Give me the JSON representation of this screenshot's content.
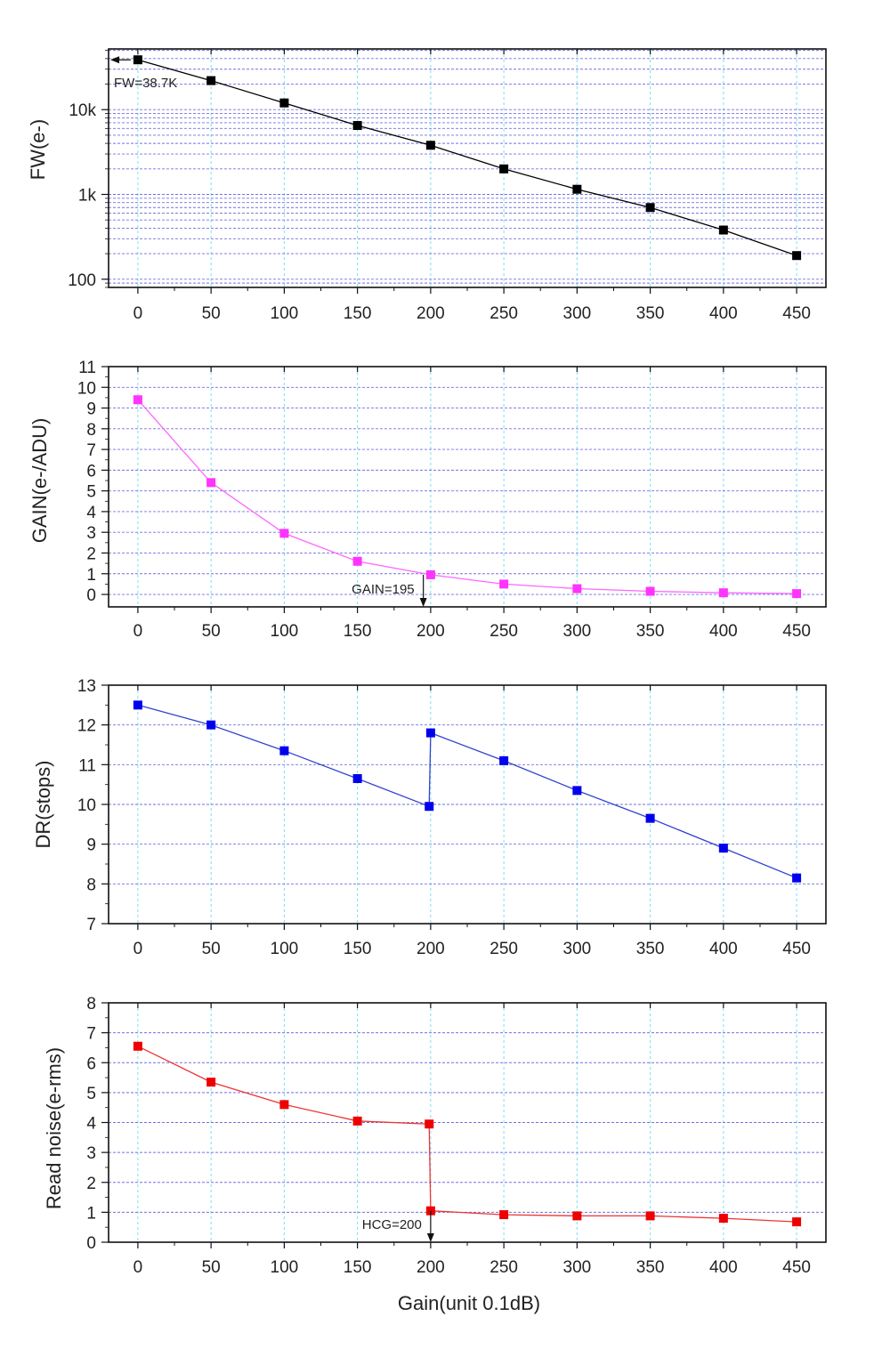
{
  "chart_data": [
    {
      "type": "line",
      "title": "",
      "ylabel": "FW(e-)",
      "xlabel": "",
      "yscale": "log",
      "ylim": [
        80,
        52000
      ],
      "xlim": [
        -20,
        470
      ],
      "xticks": [
        0,
        50,
        100,
        150,
        200,
        250,
        300,
        350,
        400,
        450
      ],
      "yticks": [
        {
          "value": 100,
          "label": "100"
        },
        {
          "value": 1000,
          "label": "1k"
        },
        {
          "value": 10000,
          "label": "10k"
        }
      ],
      "grid": true,
      "color": "#000000",
      "marker_color": "#000000",
      "series": [
        {
          "x": [
            0,
            50,
            100,
            150,
            200,
            250,
            300,
            350,
            400,
            450
          ],
          "y": [
            38700,
            22000,
            12000,
            6500,
            3800,
            2000,
            1150,
            700,
            380,
            190
          ]
        }
      ],
      "annotations": [
        {
          "text": "FW=38.7K",
          "x": 0,
          "y": 38700,
          "arrow": "left"
        }
      ]
    },
    {
      "type": "line",
      "title": "",
      "ylabel": "GAIN(e-/ADU)",
      "xlabel": "",
      "yscale": "linear",
      "ylim": [
        -0.6,
        11
      ],
      "xlim": [
        -20,
        470
      ],
      "xticks": [
        0,
        50,
        100,
        150,
        200,
        250,
        300,
        350,
        400,
        450
      ],
      "yticks": [
        {
          "value": 0,
          "label": "0"
        },
        {
          "value": 1,
          "label": "1"
        },
        {
          "value": 2,
          "label": "2"
        },
        {
          "value": 3,
          "label": "3"
        },
        {
          "value": 4,
          "label": "4"
        },
        {
          "value": 5,
          "label": "5"
        },
        {
          "value": 6,
          "label": "6"
        },
        {
          "value": 7,
          "label": "7"
        },
        {
          "value": 8,
          "label": "8"
        },
        {
          "value": 9,
          "label": "9"
        },
        {
          "value": 10,
          "label": "10"
        },
        {
          "value": 11,
          "label": "11"
        }
      ],
      "grid": true,
      "color": "#ff66ff",
      "marker_color": "#ff33ff",
      "series": [
        {
          "x": [
            0,
            50,
            100,
            150,
            200,
            250,
            300,
            350,
            400,
            450
          ],
          "y": [
            9.4,
            5.4,
            2.95,
            1.6,
            0.95,
            0.5,
            0.28,
            0.15,
            0.08,
            0.04
          ]
        }
      ],
      "annotations": [
        {
          "text": "GAIN=195",
          "x": 195,
          "y": 0.95,
          "arrow": "down"
        }
      ]
    },
    {
      "type": "line",
      "title": "",
      "ylabel": "DR(stops)",
      "xlabel": "",
      "yscale": "linear",
      "ylim": [
        7,
        13
      ],
      "xlim": [
        -20,
        470
      ],
      "xticks": [
        0,
        50,
        100,
        150,
        200,
        250,
        300,
        350,
        400,
        450
      ],
      "yticks": [
        {
          "value": 7,
          "label": "7"
        },
        {
          "value": 8,
          "label": "8"
        },
        {
          "value": 9,
          "label": "9"
        },
        {
          "value": 10,
          "label": "10"
        },
        {
          "value": 11,
          "label": "11"
        },
        {
          "value": 12,
          "label": "12"
        },
        {
          "value": 13,
          "label": "13"
        }
      ],
      "grid": true,
      "color": "#3344cc",
      "marker_color": "#0000ee",
      "series": [
        {
          "x": [
            0,
            50,
            100,
            150,
            199,
            200,
            250,
            300,
            350,
            400,
            450
          ],
          "y": [
            12.5,
            12.0,
            11.35,
            10.65,
            9.95,
            11.8,
            11.1,
            10.35,
            9.65,
            8.9,
            8.15
          ]
        }
      ],
      "annotations": []
    },
    {
      "type": "line",
      "title": "",
      "ylabel": "Read noise(e-rms)",
      "xlabel": "Gain(unit 0.1dB)",
      "yscale": "linear",
      "ylim": [
        0,
        8
      ],
      "xlim": [
        -20,
        470
      ],
      "xticks": [
        0,
        50,
        100,
        150,
        200,
        250,
        300,
        350,
        400,
        450
      ],
      "yticks": [
        {
          "value": 0,
          "label": "0"
        },
        {
          "value": 1,
          "label": "1"
        },
        {
          "value": 2,
          "label": "2"
        },
        {
          "value": 3,
          "label": "3"
        },
        {
          "value": 4,
          "label": "4"
        },
        {
          "value": 5,
          "label": "5"
        },
        {
          "value": 6,
          "label": "6"
        },
        {
          "value": 7,
          "label": "7"
        },
        {
          "value": 8,
          "label": "8"
        }
      ],
      "grid": true,
      "color": "#ee3333",
      "marker_color": "#ee0000",
      "series": [
        {
          "x": [
            0,
            50,
            100,
            150,
            199,
            200,
            250,
            300,
            350,
            400,
            450
          ],
          "y": [
            6.55,
            5.35,
            4.6,
            4.05,
            3.95,
            1.05,
            0.92,
            0.88,
            0.88,
            0.8,
            0.68
          ]
        }
      ],
      "annotations": [
        {
          "text": "HCG=200",
          "x": 200,
          "y": 1.05,
          "arrow": "down"
        }
      ]
    }
  ]
}
